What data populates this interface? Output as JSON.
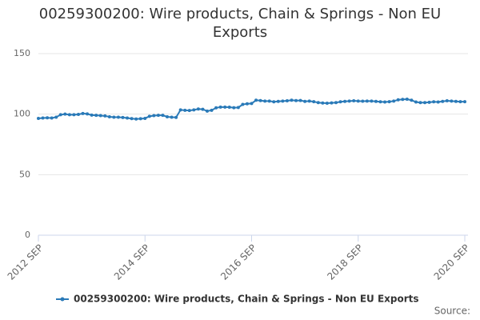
{
  "chart_data": {
    "type": "line",
    "title": "00259300200: Wire products, Chain & Springs - Non EU Exports",
    "source": "Source:",
    "categories": [
      "2012 SEP",
      null,
      null,
      null,
      null,
      null,
      null,
      null,
      null,
      null,
      null,
      null,
      null,
      null,
      null,
      null,
      null,
      null,
      null,
      null,
      null,
      null,
      null,
      null,
      "2014 SEP",
      null,
      null,
      null,
      null,
      null,
      null,
      null,
      null,
      null,
      null,
      null,
      null,
      null,
      null,
      null,
      null,
      null,
      null,
      null,
      null,
      null,
      null,
      null,
      "2016 SEP",
      null,
      null,
      null,
      null,
      null,
      null,
      null,
      null,
      null,
      null,
      null,
      null,
      null,
      null,
      null,
      null,
      null,
      null,
      null,
      null,
      null,
      null,
      null,
      "2018 SEP",
      null,
      null,
      null,
      null,
      null,
      null,
      null,
      null,
      null,
      null,
      null,
      null,
      null,
      null,
      null,
      null,
      null,
      null,
      null,
      null,
      null,
      null,
      null,
      "2020 SEP"
    ],
    "series": [
      {
        "name": "00259300200: Wire products, Chain & Springs - Non EU Exports",
        "color": "#2a7ab8",
        "values": [
          96.5,
          96.8,
          97,
          96.8,
          97.5,
          99.5,
          100,
          99.5,
          99.5,
          99.8,
          100.5,
          100.2,
          99.2,
          99,
          98.8,
          98.5,
          97.8,
          97.5,
          97.5,
          97.2,
          96.8,
          96.3,
          96,
          96.2,
          96.5,
          98.2,
          98.8,
          99,
          99,
          97.8,
          97.5,
          97.3,
          103.5,
          103.2,
          103,
          103.5,
          104.2,
          104,
          102.5,
          103.2,
          105.2,
          105.8,
          105.8,
          105.7,
          105.3,
          105.5,
          108,
          108.5,
          108.8,
          111.5,
          111.2,
          110.8,
          110.8,
          110.2,
          110.5,
          110.8,
          111,
          111.5,
          111.2,
          111.3,
          110.5,
          110.8,
          110.3,
          109.5,
          109.2,
          109,
          109.3,
          109.5,
          110.2,
          110.5,
          110.8,
          111,
          110.8,
          110.7,
          110.8,
          110.8,
          110.5,
          110.2,
          110,
          110.3,
          110.8,
          111.8,
          112.2,
          112.3,
          111.5,
          110,
          109.5,
          109.5,
          109.8,
          110.2,
          110,
          110.5,
          111,
          110.8,
          110.5,
          110.3,
          110.3
        ]
      }
    ],
    "ylim": [
      0,
      150
    ],
    "yticks": [
      0,
      50,
      100,
      150
    ],
    "grid": true
  }
}
